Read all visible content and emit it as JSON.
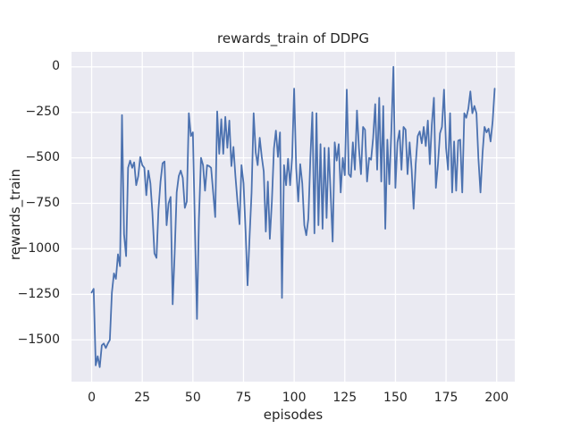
{
  "figure": {
    "title": "rewards_train of DDPG",
    "xlabel": "episodes",
    "ylabel": "rewards_train"
  },
  "chart_data": {
    "type": "line",
    "title": "rewards_train of DDPG",
    "xlabel": "episodes",
    "ylabel": "rewards_train",
    "series_name": "rewards_train",
    "x_start": 0,
    "x_step": 1,
    "x_ticks": [
      0,
      25,
      50,
      75,
      100,
      125,
      150,
      175,
      200
    ],
    "x_tick_labels": [
      "0",
      "25",
      "50",
      "75",
      "100",
      "125",
      "150",
      "175",
      "200"
    ],
    "y_ticks": [
      0,
      -250,
      -500,
      -750,
      -1000,
      -1250,
      -1500
    ],
    "y_tick_labels": [
      "0",
      "−250",
      "−500",
      "−750",
      "−1000",
      "−1250",
      "−1500"
    ],
    "xlim": [
      -9.95,
      208.95
    ],
    "ylim": [
      -1732.5,
      82.5
    ],
    "grid": true,
    "legend": false,
    "colors": {
      "line": "#4c72b0",
      "axes_bg": "#eaeaf2",
      "grid": "#ffffff",
      "figure_bg": "#ffffff",
      "text": "#262626"
    },
    "values": [
      -1240,
      -1220,
      -1640,
      -1590,
      -1650,
      -1530,
      -1520,
      -1545,
      -1520,
      -1500,
      -1240,
      -1135,
      -1165,
      -1030,
      -1095,
      -265,
      -920,
      -1040,
      -555,
      -515,
      -555,
      -525,
      -650,
      -600,
      -495,
      -540,
      -555,
      -705,
      -570,
      -640,
      -800,
      -1025,
      -1050,
      -785,
      -630,
      -530,
      -520,
      -870,
      -750,
      -715,
      -1305,
      -1030,
      -690,
      -600,
      -570,
      -610,
      -775,
      -740,
      -255,
      -380,
      -360,
      -885,
      -1385,
      -835,
      -500,
      -540,
      -680,
      -540,
      -545,
      -555,
      -690,
      -825,
      -245,
      -478,
      -288,
      -478,
      -275,
      -445,
      -295,
      -545,
      -440,
      -600,
      -740,
      -865,
      -540,
      -640,
      -905,
      -1200,
      -930,
      -690,
      -255,
      -470,
      -540,
      -390,
      -495,
      -575,
      -905,
      -630,
      -945,
      -740,
      -450,
      -350,
      -495,
      -360,
      -1270,
      -540,
      -650,
      -505,
      -650,
      -495,
      -120,
      -555,
      -740,
      -535,
      -640,
      -870,
      -925,
      -835,
      -495,
      -250,
      -915,
      -255,
      -870,
      -425,
      -890,
      -445,
      -830,
      -445,
      -690,
      -960,
      -415,
      -515,
      -425,
      -690,
      -500,
      -595,
      -125,
      -590,
      -605,
      -415,
      -565,
      -240,
      -445,
      -590,
      -330,
      -345,
      -630,
      -500,
      -510,
      -390,
      -205,
      -565,
      -170,
      -630,
      -215,
      -890,
      -400,
      -645,
      -350,
      0,
      -665,
      -415,
      -350,
      -565,
      -330,
      -345,
      -590,
      -415,
      -565,
      -780,
      -535,
      -380,
      -355,
      -420,
      -330,
      -435,
      -295,
      -535,
      -315,
      -170,
      -665,
      -535,
      -365,
      -330,
      -125,
      -445,
      -565,
      -255,
      -690,
      -410,
      -680,
      -405,
      -400,
      -690,
      -255,
      -280,
      -230,
      -135,
      -255,
      -215,
      -255,
      -505,
      -690,
      -475,
      -330,
      -360,
      -340,
      -410,
      -300,
      -120
    ]
  }
}
